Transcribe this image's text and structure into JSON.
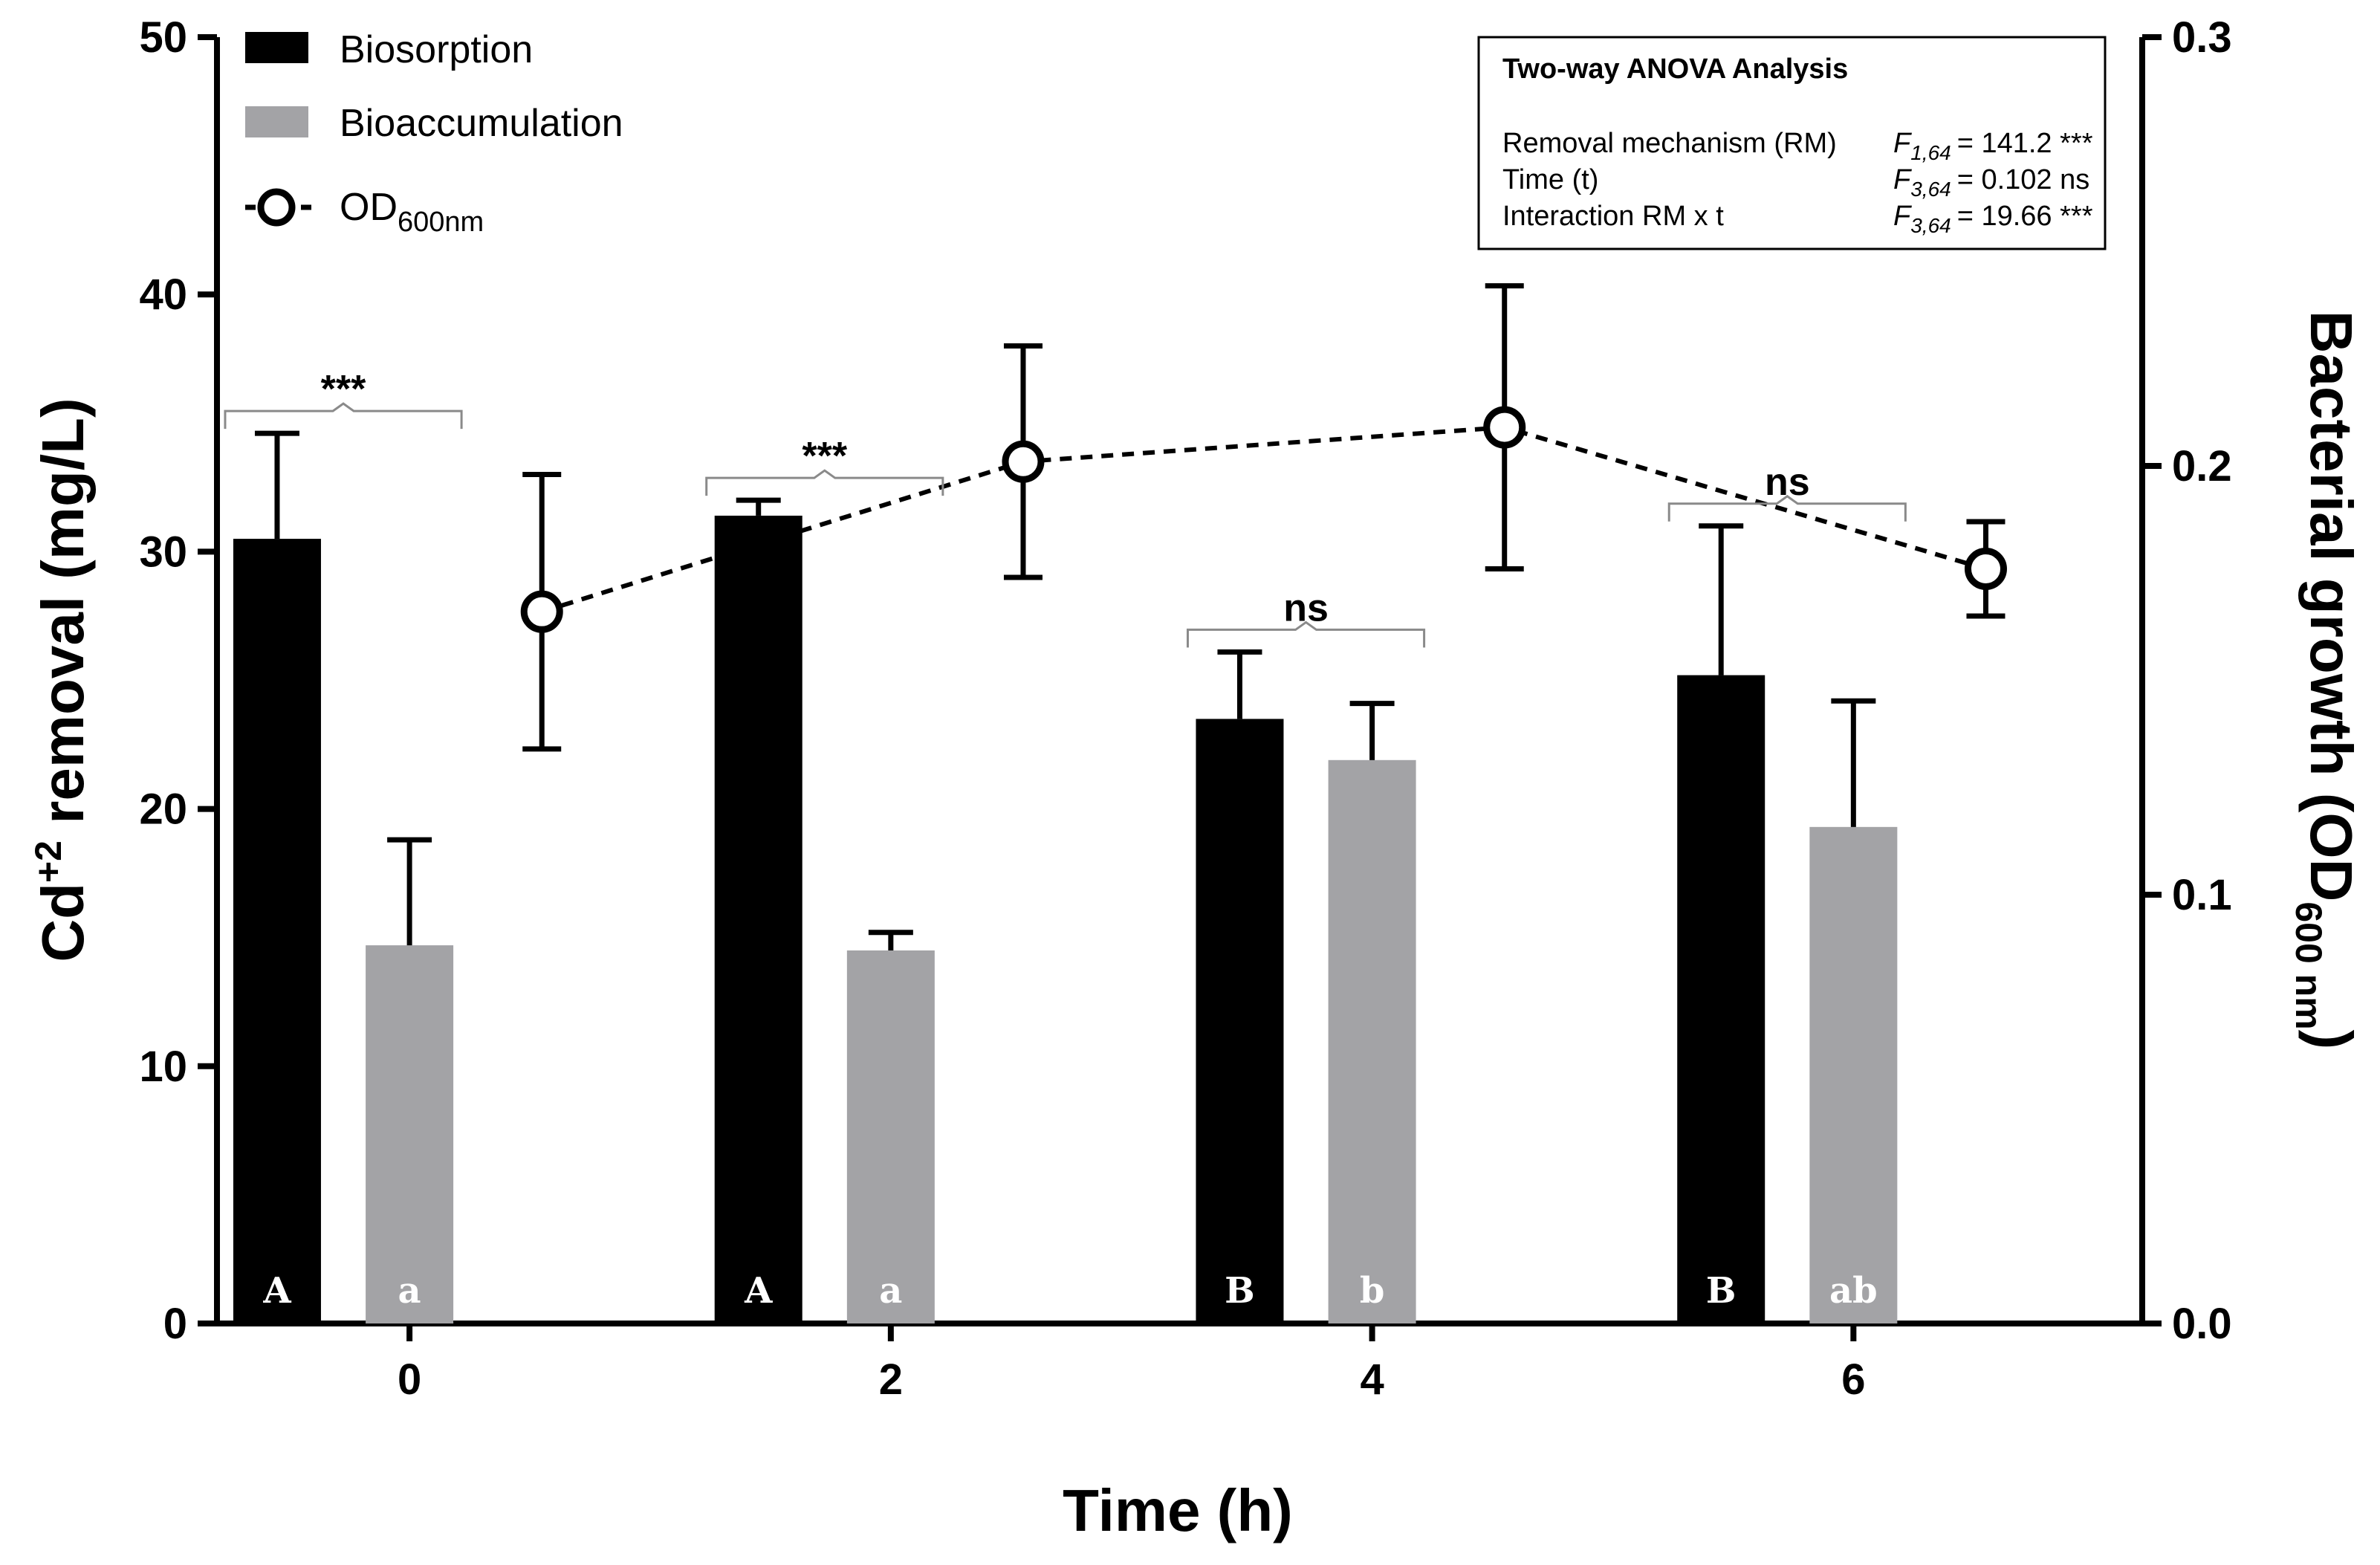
{
  "chart_data": {
    "type": "bar",
    "categories": [
      "0",
      "2",
      "4",
      "6"
    ],
    "xlabel": "Time (h)",
    "ylabel": {
      "main": "Cd",
      "sup": "+2",
      "rest": " removal (mg/L)"
    },
    "y2label": {
      "main": "Bacterial growth (OD",
      "sub": "600 nm",
      "end": ")"
    },
    "ylim": [
      0,
      50
    ],
    "y2lim": [
      0,
      0.3
    ],
    "yticks": [
      "0",
      "10",
      "20",
      "30",
      "40",
      "50"
    ],
    "y2ticks": [
      "0.0",
      "0.1",
      "0.2",
      "0.3"
    ],
    "series": [
      {
        "name": "Biosorption",
        "color": "#000000",
        "values": [
          30.5,
          31.4,
          23.5,
          25.2
        ],
        "errors": [
          4.1,
          0.6,
          2.6,
          5.8
        ],
        "letters": [
          "A",
          "A",
          "B",
          "B"
        ]
      },
      {
        "name": "Bioaccumulation",
        "color": "#a3a3a6",
        "values": [
          14.7,
          14.5,
          21.9,
          19.3
        ],
        "errors": [
          4.1,
          0.7,
          2.2,
          4.9
        ],
        "letters": [
          "a",
          "a",
          "b",
          "ab"
        ]
      }
    ],
    "line_series": {
      "name": "OD",
      "name_sub": "600nm",
      "x": [
        0.55,
        2.55,
        4.55,
        6.55
      ],
      "values": [
        0.166,
        0.201,
        0.209,
        0.176
      ],
      "errors": [
        0.032,
        0.027,
        0.033,
        0.011
      ]
    },
    "significance": [
      "***",
      "***",
      "ns",
      "ns"
    ],
    "anova": {
      "title": "Two-way ANOVA Analysis",
      "rows": [
        {
          "label": "Removal mechanism (RM)",
          "stat": "F",
          "df": "1,64",
          "value": "= 141.2 ***"
        },
        {
          "label": "Time (t)",
          "stat": "F",
          "df": "3,64",
          "value": "= 0.102 ns"
        },
        {
          "label": "Interaction RM x t",
          "stat": "F",
          "df": "3,64",
          "value": "= 19.66 ***"
        }
      ]
    }
  }
}
